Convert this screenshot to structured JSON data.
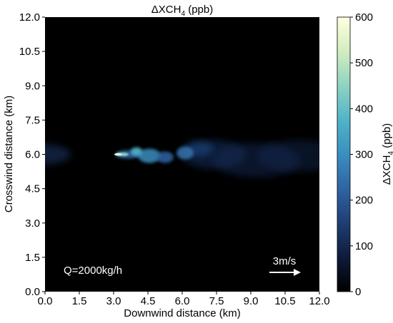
{
  "chart_data": {
    "type": "heatmap",
    "title_main": "ΔXCH",
    "title_sub": "4",
    "title_unit": " (ppb)",
    "xlabel": "Downwind distance (km)",
    "ylabel": "Crosswind distance (km)",
    "xlim": [
      0,
      12
    ],
    "ylim": [
      0,
      12
    ],
    "xticks": [
      "0.0",
      "1.5",
      "3.0",
      "4.5",
      "6.0",
      "7.5",
      "9.0",
      "10.5",
      "12.0"
    ],
    "yticks": [
      "0.0",
      "1.5",
      "3.0",
      "4.5",
      "6.0",
      "7.5",
      "9.0",
      "10.5",
      "12.0"
    ],
    "grid": false,
    "colorbar": {
      "label_main": "ΔXCH",
      "label_sub": "4",
      "label_unit": " (ppb)",
      "range": [
        0,
        600
      ],
      "ticks": [
        "0",
        "100",
        "200",
        "300",
        "400",
        "500",
        "600"
      ],
      "colors": [
        "#000000",
        "#0d1b3a",
        "#1f3e74",
        "#2f64a3",
        "#3a8ec0",
        "#50b4c7",
        "#8ed3c2",
        "#d3edc0",
        "#ffffe0"
      ]
    },
    "annotations": {
      "emission_rate": "Q=2000kg/h",
      "wind_speed": "3m/s"
    },
    "plume_centerline_km": 6.0,
    "source_x_km": 3.0
  }
}
